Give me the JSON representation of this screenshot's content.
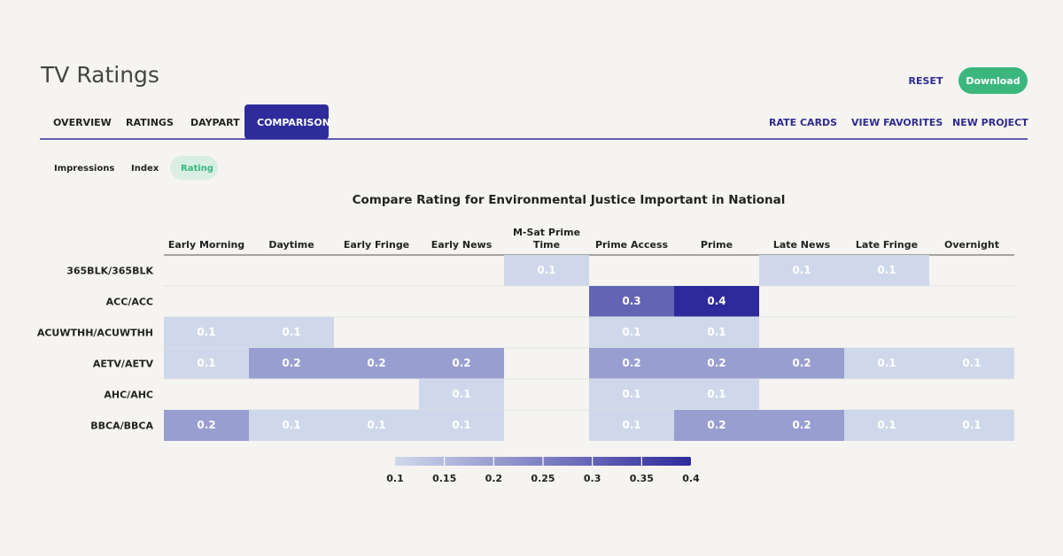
{
  "header": {
    "title": "TV Ratings",
    "reset": "RESET",
    "download": "Download"
  },
  "tabs": [
    "OVERVIEW",
    "RATINGS",
    "DAYPART",
    "COMPARISON"
  ],
  "active_tab": 3,
  "links": [
    "RATE CARDS",
    "VIEW FAVORITES",
    "NEW PROJECT"
  ],
  "subtabs": [
    "Impressions",
    "Index",
    "Rating"
  ],
  "active_subtab": 2,
  "chart_data": {
    "type": "heatmap",
    "title": "Compare Rating for Environmental Justice Important in National",
    "x": [
      "Early Morning",
      "Daytime",
      "Early Fringe",
      "Early News",
      "M-Sat Prime Time",
      "Prime Access",
      "Prime",
      "Late News",
      "Late Fringe",
      "Overnight"
    ],
    "y": [
      "365BLK/365BLK",
      "ACC/ACC",
      "ACUWTHH/ACUWTHH",
      "AETV/AETV",
      "AHC/AHC",
      "BBCA/BBCA"
    ],
    "values": [
      [
        null,
        null,
        null,
        null,
        0.1,
        null,
        null,
        0.1,
        0.1,
        null
      ],
      [
        null,
        null,
        null,
        null,
        null,
        0.3,
        0.4,
        null,
        null,
        null
      ],
      [
        0.1,
        0.1,
        null,
        null,
        null,
        0.1,
        0.1,
        null,
        null,
        null
      ],
      [
        0.1,
        0.2,
        0.2,
        0.2,
        null,
        0.2,
        0.2,
        0.2,
        0.1,
        0.1
      ],
      [
        null,
        null,
        null,
        0.1,
        null,
        0.1,
        0.1,
        null,
        null,
        null
      ],
      [
        0.2,
        0.1,
        0.1,
        0.1,
        null,
        0.1,
        0.2,
        0.2,
        0.1,
        0.1
      ]
    ],
    "clim": [
      0.1,
      0.4
    ],
    "cticks": [
      0.1,
      0.15,
      0.2,
      0.25,
      0.3,
      0.35,
      0.4
    ],
    "colors": [
      "#cfd8ea",
      "#2e2a9b"
    ]
  }
}
